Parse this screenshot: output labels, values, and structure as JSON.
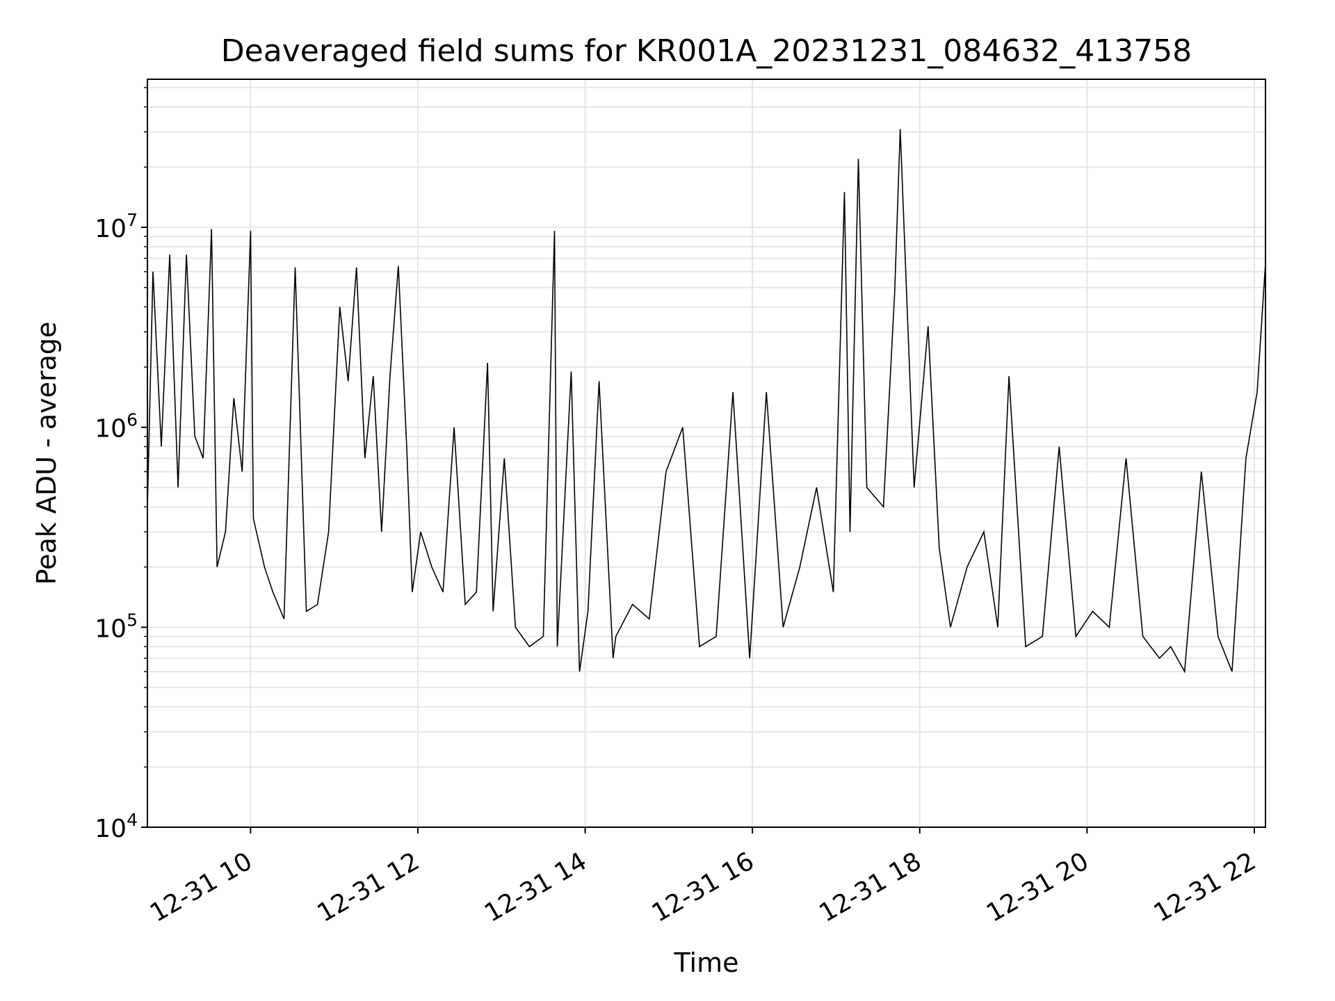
{
  "chart_data": {
    "type": "line",
    "title": "Deaveraged field sums for KR001A_20231231_084632_413758",
    "xlabel": "Time",
    "ylabel": "Peak ADU - average",
    "yscale": "log",
    "ylim": [
      10000,
      55000000
    ],
    "xlim": [
      "2023-12-31T08:46",
      "2023-12-31T22:08"
    ],
    "x_ticks": [
      {
        "time": "2023-12-31T10:00",
        "label": "12-31 10"
      },
      {
        "time": "2023-12-31T12:00",
        "label": "12-31 12"
      },
      {
        "time": "2023-12-31T14:00",
        "label": "12-31 14"
      },
      {
        "time": "2023-12-31T16:00",
        "label": "12-31 16"
      },
      {
        "time": "2023-12-31T18:00",
        "label": "12-31 18"
      },
      {
        "time": "2023-12-31T20:00",
        "label": "12-31 20"
      },
      {
        "time": "2023-12-31T22:00",
        "label": "12-31 22"
      }
    ],
    "y_ticks": [
      {
        "value": 10000,
        "base": "10",
        "exp": "4"
      },
      {
        "value": 100000,
        "base": "10",
        "exp": "5"
      },
      {
        "value": 1000000,
        "base": "10",
        "exp": "6"
      },
      {
        "value": 10000000,
        "base": "10",
        "exp": "7"
      }
    ],
    "grid": true,
    "line_color": "#000000",
    "series": [
      {
        "x": [
          "2023-12-31T08:46",
          "2023-12-31T08:50",
          "2023-12-31T08:56",
          "2023-12-31T09:02",
          "2023-12-31T09:08",
          "2023-12-31T09:14",
          "2023-12-31T09:20",
          "2023-12-31T09:26",
          "2023-12-31T09:32",
          "2023-12-31T09:36",
          "2023-12-31T09:42",
          "2023-12-31T09:48",
          "2023-12-31T09:54",
          "2023-12-31T10:00",
          "2023-12-31T10:02",
          "2023-12-31T10:10",
          "2023-12-31T10:16",
          "2023-12-31T10:24",
          "2023-12-31T10:32",
          "2023-12-31T10:40",
          "2023-12-31T10:48",
          "2023-12-31T10:56",
          "2023-12-31T11:04",
          "2023-12-31T11:10",
          "2023-12-31T11:16",
          "2023-12-31T11:22",
          "2023-12-31T11:28",
          "2023-12-31T11:34",
          "2023-12-31T11:40",
          "2023-12-31T11:46",
          "2023-12-31T11:52",
          "2023-12-31T11:56",
          "2023-12-31T12:02",
          "2023-12-31T12:10",
          "2023-12-31T12:18",
          "2023-12-31T12:26",
          "2023-12-31T12:34",
          "2023-12-31T12:42",
          "2023-12-31T12:50",
          "2023-12-31T12:54",
          "2023-12-31T13:02",
          "2023-12-31T13:10",
          "2023-12-31T13:20",
          "2023-12-31T13:30",
          "2023-12-31T13:38",
          "2023-12-31T13:40",
          "2023-12-31T13:50",
          "2023-12-31T13:56",
          "2023-12-31T14:02",
          "2023-12-31T14:10",
          "2023-12-31T14:20",
          "2023-12-31T14:22",
          "2023-12-31T14:34",
          "2023-12-31T14:46",
          "2023-12-31T14:58",
          "2023-12-31T15:10",
          "2023-12-31T15:22",
          "2023-12-31T15:34",
          "2023-12-31T15:46",
          "2023-12-31T15:58",
          "2023-12-31T16:10",
          "2023-12-31T16:22",
          "2023-12-31T16:34",
          "2023-12-31T16:46",
          "2023-12-31T16:58",
          "2023-12-31T17:06",
          "2023-12-31T17:10",
          "2023-12-31T17:16",
          "2023-12-31T17:22",
          "2023-12-31T17:34",
          "2023-12-31T17:42",
          "2023-12-31T17:46",
          "2023-12-31T17:56",
          "2023-12-31T18:06",
          "2023-12-31T18:14",
          "2023-12-31T18:22",
          "2023-12-31T18:34",
          "2023-12-31T18:46",
          "2023-12-31T18:56",
          "2023-12-31T19:04",
          "2023-12-31T19:16",
          "2023-12-31T19:28",
          "2023-12-31T19:40",
          "2023-12-31T19:52",
          "2023-12-31T20:04",
          "2023-12-31T20:16",
          "2023-12-31T20:28",
          "2023-12-31T20:40",
          "2023-12-31T20:52",
          "2023-12-31T21:00",
          "2023-12-31T21:10",
          "2023-12-31T21:22",
          "2023-12-31T21:34",
          "2023-12-31T21:44",
          "2023-12-31T21:54",
          "2023-12-31T22:02",
          "2023-12-31T22:08"
        ],
        "values": [
          400000,
          6000000,
          800000,
          7300000,
          500000,
          7300000,
          900000,
          700000,
          9800000,
          200000,
          300000,
          1400000,
          600000,
          9600000,
          350000,
          200000,
          150000,
          110000,
          6300000,
          120000,
          130000,
          300000,
          4000000,
          1700000,
          6300000,
          700000,
          1800000,
          300000,
          1800000,
          6400000,
          800000,
          150000,
          300000,
          200000,
          150000,
          1000000,
          130000,
          150000,
          2100000,
          120000,
          700000,
          100000,
          80000,
          90000,
          9600000,
          80000,
          1900000,
          60000,
          120000,
          1700000,
          70000,
          90000,
          130000,
          110000,
          600000,
          1000000,
          80000,
          90000,
          1500000,
          70000,
          1500000,
          100000,
          200000,
          500000,
          150000,
          15000000,
          300000,
          22000000,
          500000,
          400000,
          4700000,
          31000000,
          500000,
          3200000,
          250000,
          100000,
          200000,
          300000,
          100000,
          1800000,
          80000,
          90000,
          800000,
          90000,
          120000,
          100000,
          700000,
          90000,
          70000,
          80000,
          60000,
          600000,
          90000,
          60000,
          700000,
          1500000,
          6600000
        ]
      }
    ]
  }
}
